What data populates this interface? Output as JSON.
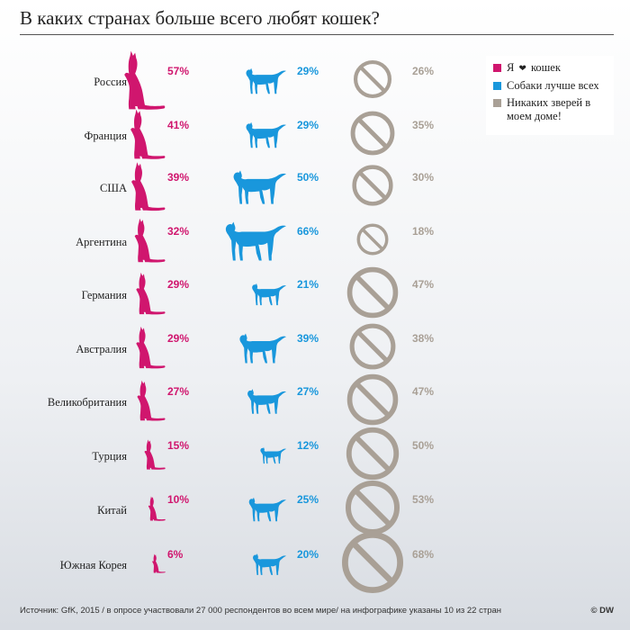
{
  "header": {
    "title": "В каких странах больше всего любят кошек?"
  },
  "legend": {
    "items": [
      {
        "key": "cats",
        "prefix": "Я",
        "suffix": "кошек",
        "color": "#d0166e",
        "icon": "heart-icon"
      },
      {
        "key": "dogs",
        "label": "Собаки лучше всех",
        "color": "#1997dc"
      },
      {
        "key": "none",
        "label": "Никаких зверей в моем доме!",
        "color": "#a9a096"
      }
    ]
  },
  "chart_data": {
    "type": "table",
    "title": "В каких странах больше всего любят кошек?",
    "unit": "%",
    "categories": [
      "Россия",
      "Франция",
      "США",
      "Аргентина",
      "Германия",
      "Австралия",
      "Великобритания",
      "Турция",
      "Китай",
      "Южная Корея"
    ],
    "series": [
      {
        "name": "Я ❤ кошек",
        "color": "#d0166e",
        "icon": "cat-icon",
        "values": [
          57,
          41,
          39,
          32,
          29,
          29,
          27,
          15,
          10,
          6
        ]
      },
      {
        "name": "Собаки лучше всех",
        "color": "#1997dc",
        "icon": "dog-icon",
        "values": [
          29,
          29,
          50,
          66,
          21,
          39,
          27,
          12,
          25,
          20
        ]
      },
      {
        "name": "Никаких зверей в моем доме!",
        "color": "#a9a096",
        "icon": "no-sign-icon",
        "values": [
          26,
          35,
          30,
          18,
          47,
          38,
          47,
          50,
          53,
          68
        ]
      }
    ]
  },
  "footer": {
    "source": "Источник: GfK, 2015 / в опросе участвовали 27 000 респондентов во всем мире/ на инфографике указаны 10 из 22 стран",
    "brand": "© DW"
  }
}
